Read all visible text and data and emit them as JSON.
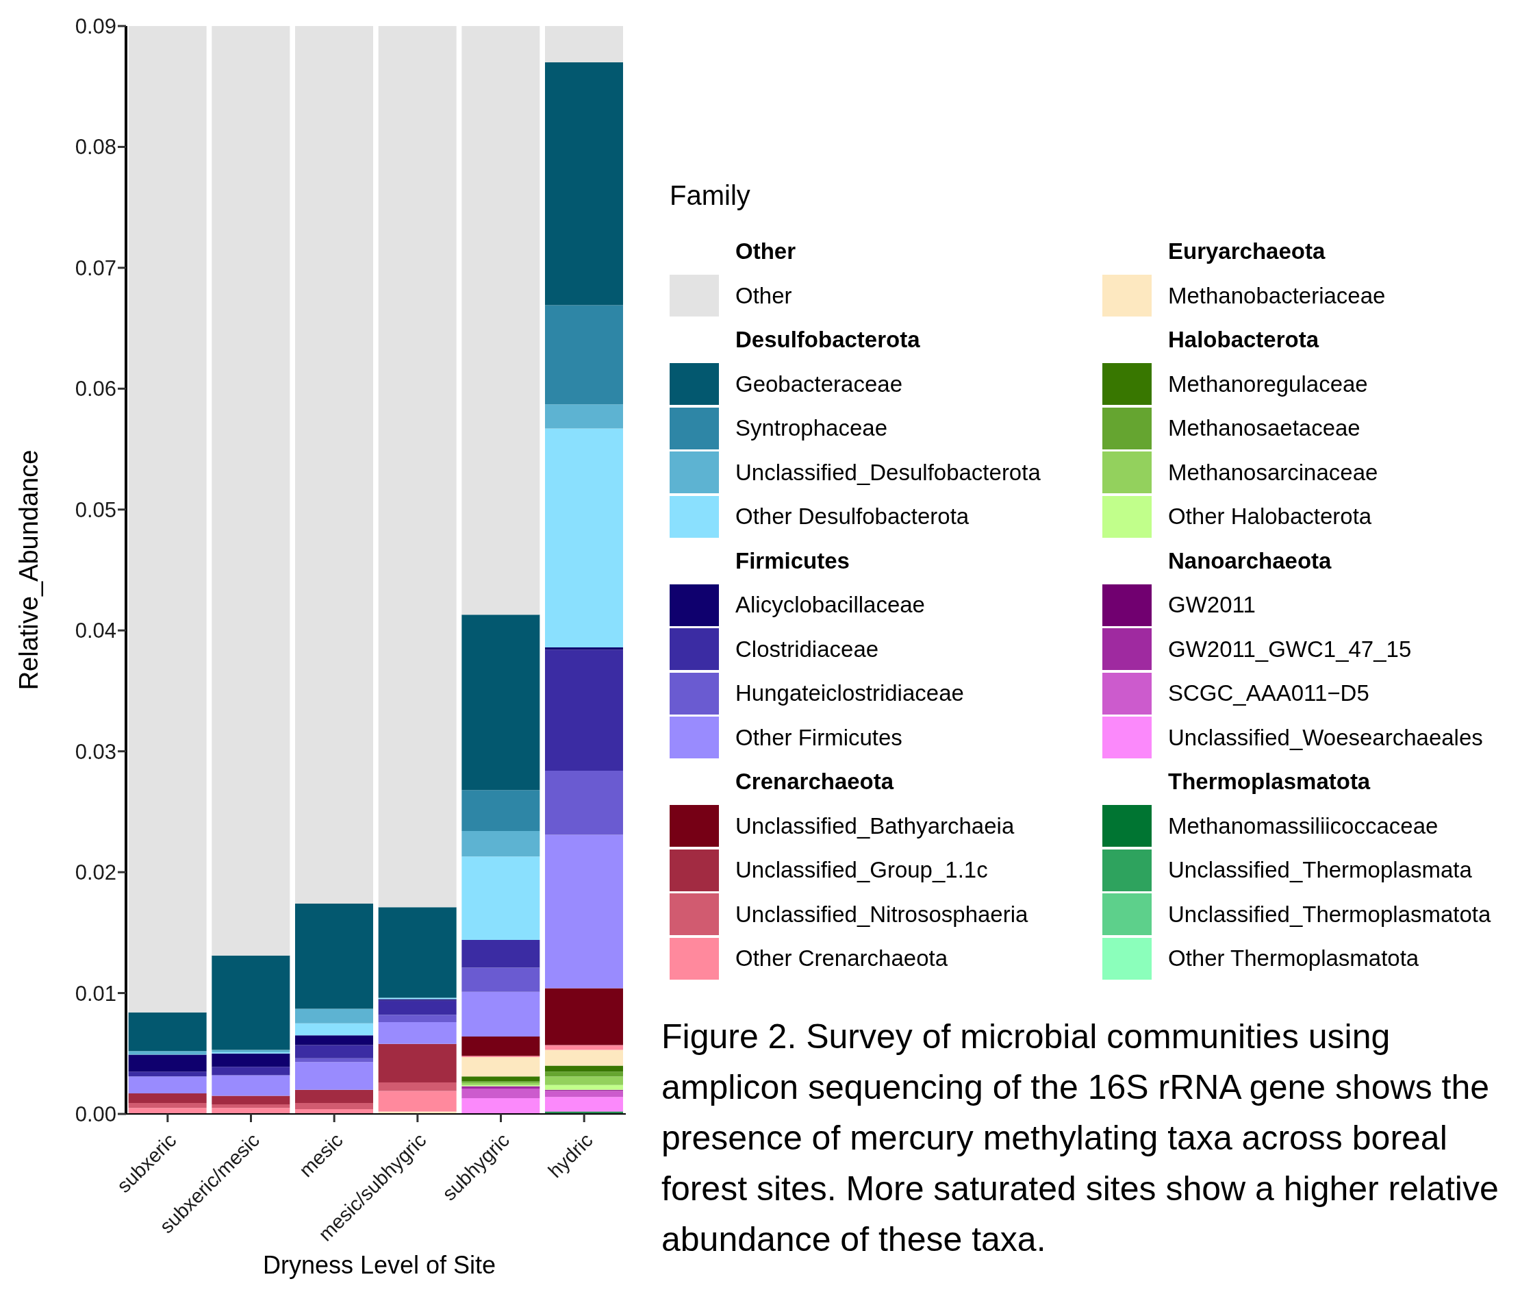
{
  "chart_data": {
    "type": "bar",
    "stacked": true,
    "xlabel": "Dryness Level of Site",
    "ylabel": "Relative_Abundance",
    "legend_title": "Family",
    "legend": "right",
    "grid": false,
    "categories": [
      "subxeric",
      "subxeric/mesic",
      "mesic",
      "mesic/subhygric",
      "subhygric",
      "hydric"
    ],
    "ylim": [
      0,
      0.09
    ],
    "yticks": [
      {
        "value": 0,
        "label": "0.00"
      },
      {
        "value": 0.01,
        "label": "0.01"
      },
      {
        "value": 0.02,
        "label": "0.02"
      },
      {
        "value": 0.03,
        "label": "0.03"
      },
      {
        "value": 0.04,
        "label": "0.04"
      },
      {
        "value": 0.05,
        "label": "0.05"
      },
      {
        "value": 0.06,
        "label": "0.06"
      },
      {
        "value": 0.07,
        "label": "0.07"
      },
      {
        "value": 0.08,
        "label": "0.08"
      },
      {
        "value": 0.09,
        "label": "0.09"
      }
    ],
    "series": [
      {
        "name": "Other Thermoplasmatota",
        "color": "#8bffbb",
        "values": [
          0,
          0,
          0,
          0,
          0,
          0
        ]
      },
      {
        "name": "Unclassified_Thermoplasmatota",
        "color": "#5dd08b",
        "values": [
          0,
          0,
          0,
          0,
          0,
          0
        ]
      },
      {
        "name": "Unclassified_Thermoplasmata",
        "color": "#2ea35e",
        "values": [
          0,
          0,
          0,
          0,
          0,
          0.0001
        ]
      },
      {
        "name": "Methanomassiliicoccaceae",
        "color": "#007532",
        "values": [
          0,
          0,
          0,
          0,
          0,
          0.0001
        ]
      },
      {
        "name": "Unclassified_Woesearchaeales",
        "color": "#fb89fb",
        "values": [
          0,
          0,
          0,
          0,
          0.0013,
          0.0012
        ]
      },
      {
        "name": "SCGC_AAA011−D5",
        "color": "#cc5bcd",
        "values": [
          0,
          0,
          0,
          0,
          0.0008,
          0.0005
        ]
      },
      {
        "name": "GW2011_GWC1_47_15",
        "color": "#9f2aa0",
        "values": [
          0,
          0,
          0,
          0,
          0.0002,
          0.0001
        ]
      },
      {
        "name": "GW2011",
        "color": "#710070",
        "values": [
          0,
          0,
          0,
          0,
          0,
          0
        ]
      },
      {
        "name": "Other Halobacterota",
        "color": "#c1ff8b",
        "values": [
          0,
          0,
          0,
          0,
          0.0001,
          0.0004
        ]
      },
      {
        "name": "Methanosarcinaceae",
        "color": "#93d15d",
        "values": [
          0,
          0,
          0,
          0,
          0.0002,
          0.0007
        ]
      },
      {
        "name": "Methanosaetaceae",
        "color": "#65a530",
        "values": [
          0,
          0,
          0,
          0,
          0.0001,
          0.0004
        ]
      },
      {
        "name": "Methanoregulaceae",
        "color": "#387700",
        "values": [
          0,
          0,
          0,
          0,
          0.0004,
          0.0005
        ]
      },
      {
        "name": "Methanobacteriaceae",
        "color": "#fde8c0",
        "values": [
          0,
          0,
          0,
          0.0002,
          0.0016,
          0.0013
        ]
      },
      {
        "name": "Other Crenarchaeota",
        "color": "#ff899d",
        "values": [
          0.0005,
          0.0005,
          0.0004,
          0.0017,
          0.0001,
          0.0004
        ]
      },
      {
        "name": "Unclassified_Nitrososphaeria",
        "color": "#d15b70",
        "values": [
          0.0004,
          0.0003,
          0.0005,
          0.0007,
          0,
          0
        ]
      },
      {
        "name": "Unclassified_Group_1.1c",
        "color": "#a22b42",
        "values": [
          0.0008,
          0.0007,
          0.0011,
          0.0032,
          0,
          0
        ]
      },
      {
        "name": "Unclassified_Bathyarchaeia",
        "color": "#760015",
        "values": [
          0,
          0,
          0,
          0,
          0.0016,
          0.0047
        ]
      },
      {
        "name": "Other Firmicutes",
        "color": "#998bfe",
        "values": [
          0.0014,
          0.0017,
          0.0023,
          0.0018,
          0.0037,
          0.0127
        ]
      },
      {
        "name": "Hungateiclostridiaceae",
        "color": "#6a5bd1",
        "values": [
          0,
          0,
          0.0003,
          0.0006,
          0.002,
          0.0053
        ]
      },
      {
        "name": "Clostridiaceae",
        "color": "#3b2ca3",
        "values": [
          0.0004,
          0.0007,
          0.0011,
          0.0012,
          0.0023,
          0.01
        ]
      },
      {
        "name": "Alicyclobacillaceae",
        "color": "#0f006e",
        "values": [
          0.0014,
          0.0011,
          0.0008,
          0.0001,
          0,
          0.0002
        ]
      },
      {
        "name": "Other Desulfobacterota",
        "color": "#8ae0fe",
        "values": [
          0,
          0.0001,
          0.001,
          0.0001,
          0.0069,
          0.0181
        ]
      },
      {
        "name": "Unclassified_Desulfobacterota",
        "color": "#5db3d2",
        "values": [
          0.0003,
          0.0002,
          0.0012,
          0,
          0.0021,
          0.002
        ]
      },
      {
        "name": "Syntrophaceae",
        "color": "#2e86a6",
        "values": [
          0,
          0,
          0,
          0,
          0.0034,
          0.0082
        ]
      },
      {
        "name": "Geobacteraceae",
        "color": "#03586f",
        "values": [
          0.0032,
          0.0078,
          0.0087,
          0.0075,
          0.0145,
          0.0201
        ]
      },
      {
        "name": "Other",
        "color": "#e3e3e3",
        "values": [
          0.0816,
          0.0769,
          0.0726,
          0.0729,
          0.0487,
          0.003
        ]
      }
    ],
    "annotations": [
      "Figure 2. Survey of microbial communities using amplicon sequencing of the 16S rRNA gene shows the presence of mercury methylating taxa across boreal forest sites. More saturated sites show a higher relative abundance of these taxa.",
      "Other",
      "Desulfobacterota",
      "Firmicutes",
      "Crenarchaeota",
      "Euryarchaeota",
      "Halobacterota",
      "Nanoarchaeota",
      "Thermoplasmatota"
    ]
  }
}
